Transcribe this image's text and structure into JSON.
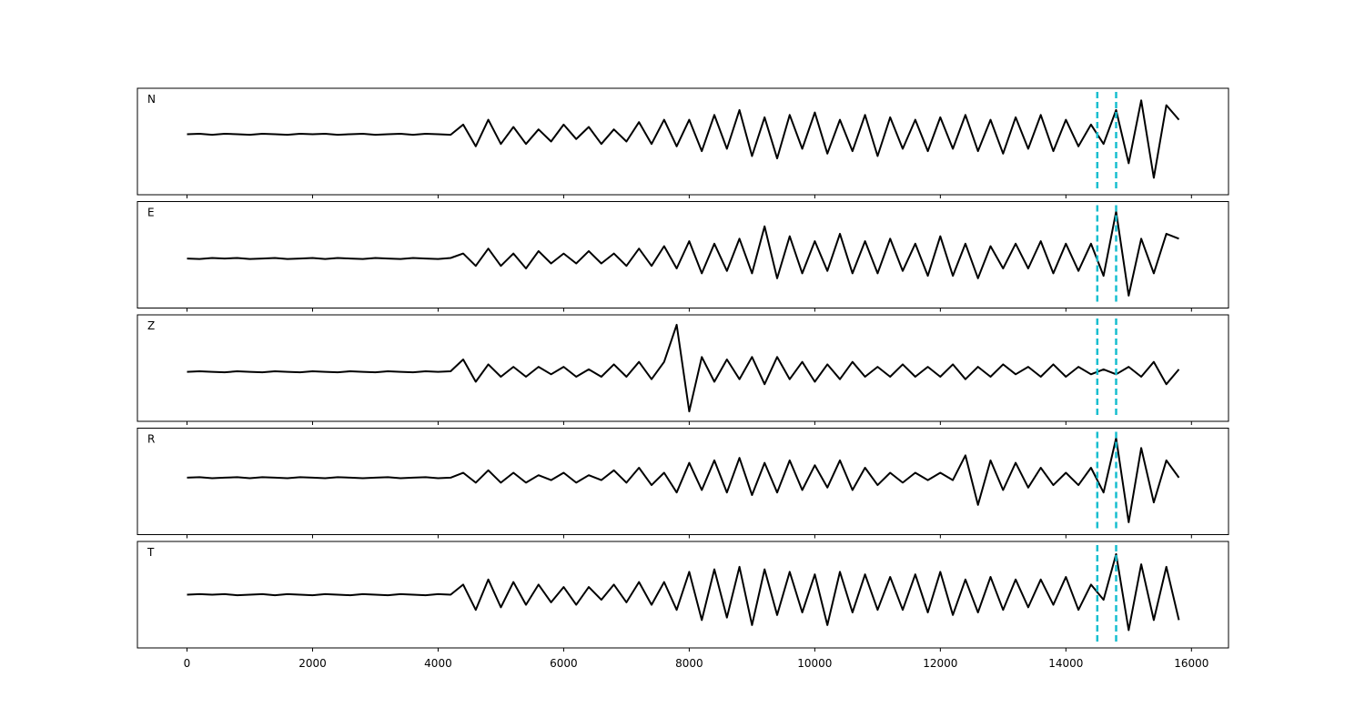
{
  "chart_data": [
    {
      "type": "line",
      "label": "N",
      "color": "#000000",
      "xlim": [
        -790,
        16590
      ],
      "ylim": [
        -1.25,
        0.95
      ],
      "xticks": [
        0,
        2000,
        4000,
        6000,
        8000,
        10000,
        12000,
        14000,
        16000
      ],
      "vlines": [
        14500,
        14800
      ],
      "vline_color": "#17becf",
      "x": [
        0,
        200,
        400,
        600,
        800,
        1000,
        1200,
        1400,
        1600,
        1800,
        2000,
        2200,
        2400,
        2600,
        2800,
        3000,
        3200,
        3400,
        3600,
        3800,
        4000,
        4200,
        4400,
        4600,
        4800,
        5000,
        5200,
        5400,
        5600,
        5800,
        6000,
        6200,
        6400,
        6600,
        6800,
        7000,
        7200,
        7400,
        7600,
        7800,
        8000,
        8200,
        8400,
        8600,
        8800,
        9000,
        9200,
        9400,
        9600,
        9800,
        10000,
        10200,
        10400,
        10600,
        10800,
        11000,
        11200,
        11400,
        11600,
        11800,
        12000,
        12200,
        12400,
        12600,
        12800,
        13000,
        13200,
        13400,
        13600,
        13800,
        14000,
        14200,
        14400,
        14600,
        14800,
        15000,
        15200,
        15400,
        15600,
        15800
      ],
      "values": [
        0,
        0.01,
        -0.01,
        0.01,
        0,
        -0.01,
        0.01,
        0,
        -0.01,
        0.01,
        0,
        0.01,
        -0.01,
        0,
        0.01,
        -0.01,
        0,
        0.01,
        -0.01,
        0.01,
        0,
        -0.01,
        0.2,
        -0.25,
        0.3,
        -0.2,
        0.15,
        -0.2,
        0.1,
        -0.15,
        0.2,
        -0.1,
        0.15,
        -0.2,
        0.1,
        -0.15,
        0.25,
        -0.2,
        0.3,
        -0.25,
        0.3,
        -0.35,
        0.4,
        -0.3,
        0.5,
        -0.45,
        0.35,
        -0.5,
        0.4,
        -0.3,
        0.45,
        -0.4,
        0.3,
        -0.35,
        0.4,
        -0.45,
        0.35,
        -0.3,
        0.3,
        -0.35,
        0.35,
        -0.3,
        0.4,
        -0.35,
        0.3,
        -0.4,
        0.35,
        -0.3,
        0.4,
        -0.35,
        0.3,
        -0.25,
        0.2,
        -0.2,
        0.5,
        -0.6,
        0.7,
        -0.9,
        0.6,
        0.3
      ]
    },
    {
      "type": "line",
      "label": "E",
      "color": "#000000",
      "xlim": [
        -790,
        16590
      ],
      "ylim": [
        -1.0,
        1.15
      ],
      "xticks": [
        0,
        2000,
        4000,
        6000,
        8000,
        10000,
        12000,
        14000,
        16000
      ],
      "vlines": [
        14500,
        14800
      ],
      "vline_color": "#17becf",
      "x": [
        0,
        200,
        400,
        600,
        800,
        1000,
        1200,
        1400,
        1600,
        1800,
        2000,
        2200,
        2400,
        2600,
        2800,
        3000,
        3200,
        3400,
        3600,
        3800,
        4000,
        4200,
        4400,
        4600,
        4800,
        5000,
        5200,
        5400,
        5600,
        5800,
        6000,
        6200,
        6400,
        6600,
        6800,
        7000,
        7200,
        7400,
        7600,
        7800,
        8000,
        8200,
        8400,
        8600,
        8800,
        9000,
        9200,
        9400,
        9600,
        9800,
        10000,
        10200,
        10400,
        10600,
        10800,
        11000,
        11200,
        11400,
        11600,
        11800,
        12000,
        12200,
        12400,
        12600,
        12800,
        13000,
        13200,
        13400,
        13600,
        13800,
        14000,
        14200,
        14400,
        14600,
        14800,
        15000,
        15200,
        15400,
        15600,
        15800
      ],
      "values": [
        0,
        -0.01,
        0.01,
        0,
        0.01,
        -0.01,
        0,
        0.01,
        -0.01,
        0,
        0.01,
        -0.01,
        0.01,
        0,
        -0.01,
        0.01,
        0,
        -0.01,
        0.01,
        0,
        -0.01,
        0.01,
        0.1,
        -0.15,
        0.2,
        -0.15,
        0.1,
        -0.2,
        0.15,
        -0.1,
        0.1,
        -0.1,
        0.15,
        -0.1,
        0.1,
        -0.15,
        0.2,
        -0.15,
        0.25,
        -0.2,
        0.35,
        -0.3,
        0.3,
        -0.25,
        0.4,
        -0.3,
        0.65,
        -0.4,
        0.45,
        -0.3,
        0.35,
        -0.25,
        0.5,
        -0.3,
        0.35,
        -0.3,
        0.4,
        -0.25,
        0.3,
        -0.35,
        0.45,
        -0.35,
        0.3,
        -0.4,
        0.25,
        -0.2,
        0.3,
        -0.2,
        0.35,
        -0.3,
        0.3,
        -0.25,
        0.3,
        -0.35,
        0.95,
        -0.75,
        0.4,
        -0.3,
        0.5,
        0.4
      ]
    },
    {
      "type": "line",
      "label": "Z",
      "color": "#000000",
      "xlim": [
        -790,
        16590
      ],
      "ylim": [
        -1.0,
        1.15
      ],
      "xticks": [
        0,
        2000,
        4000,
        6000,
        8000,
        10000,
        12000,
        14000,
        16000
      ],
      "vlines": [
        14500,
        14800
      ],
      "vline_color": "#17becf",
      "x": [
        0,
        200,
        400,
        600,
        800,
        1000,
        1200,
        1400,
        1600,
        1800,
        2000,
        2200,
        2400,
        2600,
        2800,
        3000,
        3200,
        3400,
        3600,
        3800,
        4000,
        4200,
        4400,
        4600,
        4800,
        5000,
        5200,
        5400,
        5600,
        5800,
        6000,
        6200,
        6400,
        6600,
        6800,
        7000,
        7200,
        7400,
        7600,
        7800,
        8000,
        8200,
        8400,
        8600,
        8800,
        9000,
        9200,
        9400,
        9600,
        9800,
        10000,
        10200,
        10400,
        10600,
        10800,
        11000,
        11200,
        11400,
        11600,
        11800,
        12000,
        12200,
        12400,
        12600,
        12800,
        13000,
        13200,
        13400,
        13600,
        13800,
        14000,
        14200,
        14400,
        14600,
        14800,
        15000,
        15200,
        15400,
        15600,
        15800
      ],
      "values": [
        0,
        0.01,
        0,
        -0.01,
        0.01,
        0,
        -0.01,
        0.01,
        0,
        -0.01,
        0.01,
        0,
        -0.01,
        0.01,
        0,
        -0.01,
        0.01,
        0,
        -0.01,
        0.01,
        0,
        0.01,
        0.25,
        -0.2,
        0.15,
        -0.1,
        0.1,
        -0.1,
        0.1,
        -0.05,
        0.1,
        -0.1,
        0.05,
        -0.1,
        0.15,
        -0.1,
        0.2,
        -0.15,
        0.2,
        0.95,
        -0.8,
        0.3,
        -0.2,
        0.25,
        -0.15,
        0.3,
        -0.25,
        0.3,
        -0.15,
        0.2,
        -0.2,
        0.15,
        -0.15,
        0.2,
        -0.1,
        0.1,
        -0.1,
        0.15,
        -0.1,
        0.1,
        -0.1,
        0.15,
        -0.15,
        0.1,
        -0.1,
        0.15,
        -0.05,
        0.1,
        -0.1,
        0.15,
        -0.1,
        0.1,
        -0.05,
        0.05,
        -0.05,
        0.1,
        -0.1,
        0.2,
        -0.25,
        0.05
      ]
    },
    {
      "type": "line",
      "label": "R",
      "color": "#000000",
      "xlim": [
        -790,
        16590
      ],
      "ylim": [
        -1.15,
        1.0
      ],
      "xticks": [
        0,
        2000,
        4000,
        6000,
        8000,
        10000,
        12000,
        14000,
        16000
      ],
      "vlines": [
        14500,
        14800
      ],
      "vline_color": "#17becf",
      "x": [
        0,
        200,
        400,
        600,
        800,
        1000,
        1200,
        1400,
        1600,
        1800,
        2000,
        2200,
        2400,
        2600,
        2800,
        3000,
        3200,
        3400,
        3600,
        3800,
        4000,
        4200,
        4400,
        4600,
        4800,
        5000,
        5200,
        5400,
        5600,
        5800,
        6000,
        6200,
        6400,
        6600,
        6800,
        7000,
        7200,
        7400,
        7600,
        7800,
        8000,
        8200,
        8400,
        8600,
        8800,
        9000,
        9200,
        9400,
        9600,
        9800,
        10000,
        10200,
        10400,
        10600,
        10800,
        11000,
        11200,
        11400,
        11600,
        11800,
        12000,
        12200,
        12400,
        12600,
        12800,
        13000,
        13200,
        13400,
        13600,
        13800,
        14000,
        14200,
        14400,
        14600,
        14800,
        15000,
        15200,
        15400,
        15600,
        15800
      ],
      "values": [
        0,
        0.01,
        -0.01,
        0,
        0.01,
        -0.01,
        0.01,
        0,
        -0.01,
        0.01,
        0,
        -0.01,
        0.01,
        0,
        -0.01,
        0,
        0.01,
        -0.01,
        0,
        0.01,
        -0.01,
        0,
        0.1,
        -0.1,
        0.15,
        -0.1,
        0.1,
        -0.1,
        0.05,
        -0.05,
        0.1,
        -0.1,
        0.05,
        -0.05,
        0.15,
        -0.1,
        0.2,
        -0.15,
        0.1,
        -0.3,
        0.3,
        -0.25,
        0.35,
        -0.3,
        0.4,
        -0.35,
        0.3,
        -0.3,
        0.35,
        -0.25,
        0.25,
        -0.2,
        0.35,
        -0.25,
        0.2,
        -0.15,
        0.1,
        -0.1,
        0.1,
        -0.05,
        0.1,
        -0.05,
        0.45,
        -0.55,
        0.35,
        -0.25,
        0.3,
        -0.2,
        0.2,
        -0.15,
        0.1,
        -0.15,
        0.2,
        -0.3,
        0.8,
        -0.9,
        0.6,
        -0.5,
        0.35,
        0
      ]
    },
    {
      "type": "line",
      "label": "T",
      "color": "#000000",
      "xlim": [
        -790,
        16590
      ],
      "ylim": [
        -1.05,
        1.05
      ],
      "xticks": [
        0,
        2000,
        4000,
        6000,
        8000,
        10000,
        12000,
        14000,
        16000
      ],
      "vlines": [
        14500,
        14800
      ],
      "vline_color": "#17becf",
      "x": [
        0,
        200,
        400,
        600,
        800,
        1000,
        1200,
        1400,
        1600,
        1800,
        2000,
        2200,
        2400,
        2600,
        2800,
        3000,
        3200,
        3400,
        3600,
        3800,
        4000,
        4200,
        4400,
        4600,
        4800,
        5000,
        5200,
        5400,
        5600,
        5800,
        6000,
        6200,
        6400,
        6600,
        6800,
        7000,
        7200,
        7400,
        7600,
        7800,
        8000,
        8200,
        8400,
        8600,
        8800,
        9000,
        9200,
        9400,
        9600,
        9800,
        10000,
        10200,
        10400,
        10600,
        10800,
        11000,
        11200,
        11400,
        11600,
        11800,
        12000,
        12200,
        12400,
        12600,
        12800,
        13000,
        13200,
        13400,
        13600,
        13800,
        14000,
        14200,
        14400,
        14600,
        14800,
        15000,
        15200,
        15400,
        15600,
        15800
      ],
      "values": [
        0,
        0.01,
        0,
        0.01,
        -0.01,
        0,
        0.01,
        -0.01,
        0.01,
        0,
        -0.01,
        0.01,
        0,
        -0.01,
        0.01,
        0,
        -0.01,
        0.01,
        0,
        -0.01,
        0.01,
        0,
        0.2,
        -0.3,
        0.3,
        -0.25,
        0.25,
        -0.2,
        0.2,
        -0.15,
        0.15,
        -0.2,
        0.15,
        -0.1,
        0.2,
        -0.15,
        0.25,
        -0.2,
        0.25,
        -0.3,
        0.45,
        -0.5,
        0.5,
        -0.45,
        0.55,
        -0.6,
        0.5,
        -0.4,
        0.45,
        -0.35,
        0.4,
        -0.6,
        0.45,
        -0.35,
        0.4,
        -0.3,
        0.35,
        -0.3,
        0.4,
        -0.35,
        0.45,
        -0.4,
        0.3,
        -0.35,
        0.35,
        -0.3,
        0.3,
        -0.25,
        0.3,
        -0.2,
        0.35,
        -0.3,
        0.2,
        -0.1,
        0.8,
        -0.7,
        0.6,
        -0.5,
        0.55,
        -0.5
      ]
    }
  ]
}
